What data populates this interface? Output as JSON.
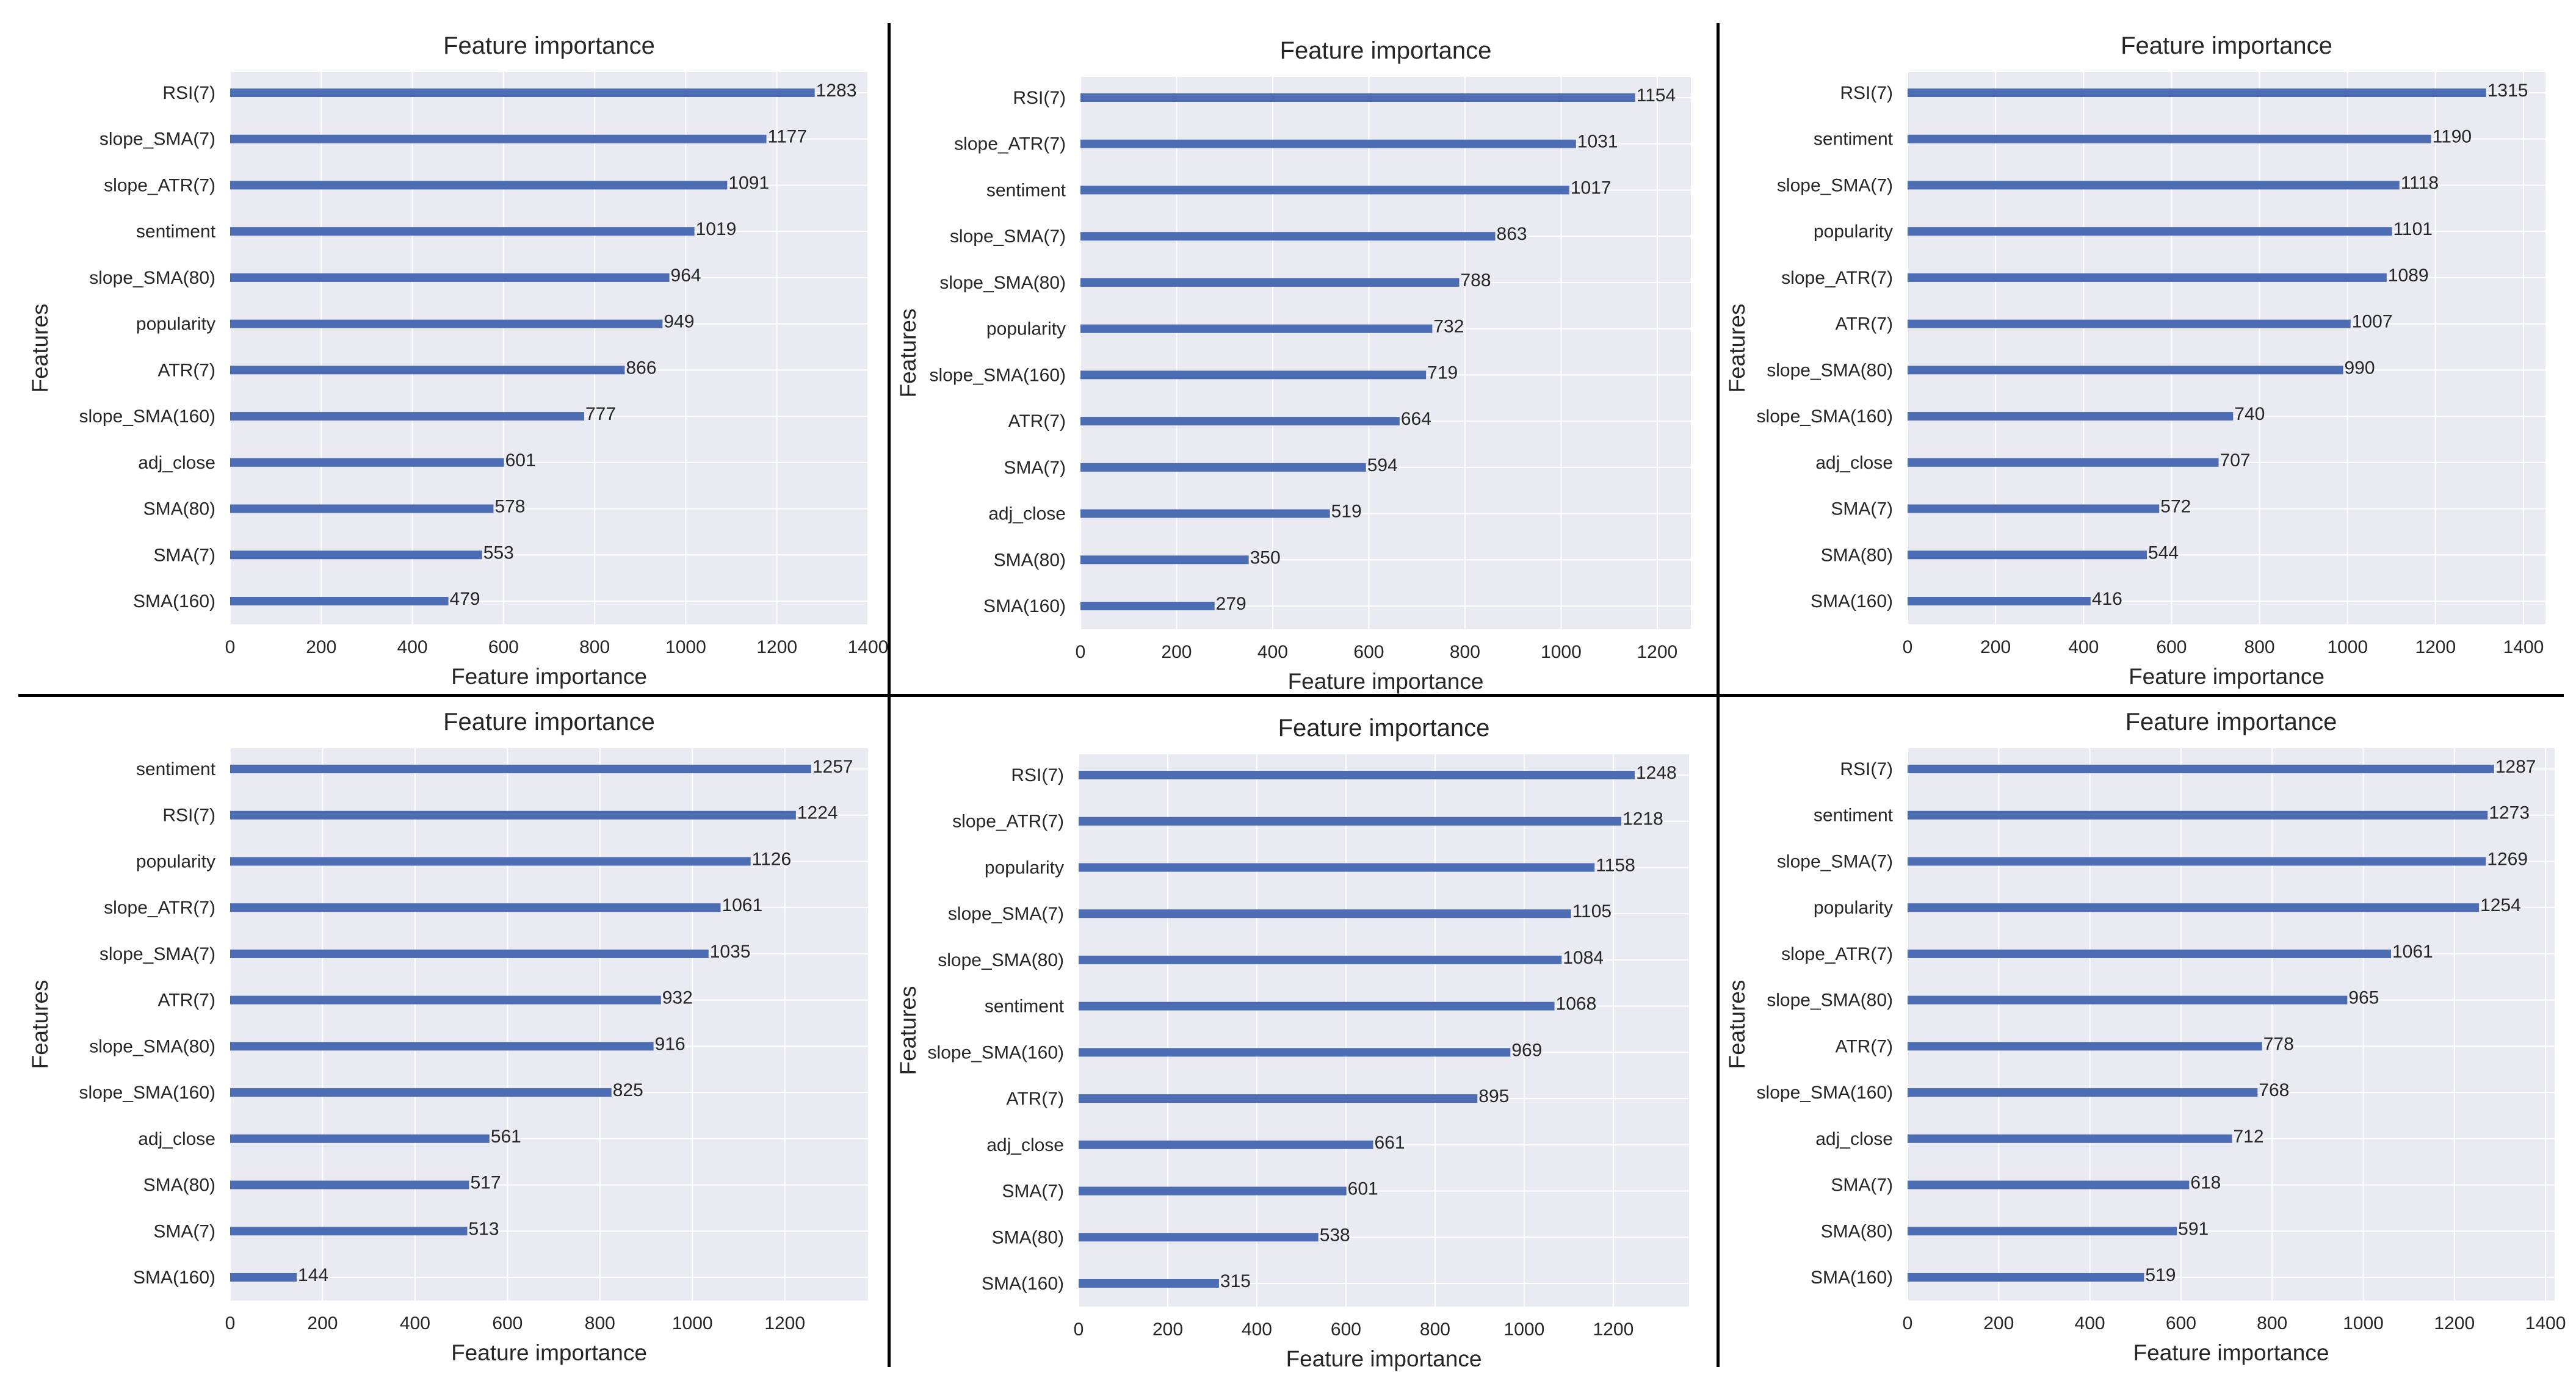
{
  "colors": {
    "bar": "#4c6db4",
    "plot_bg": "#eaeaf2",
    "grid": "#ffffff",
    "text": "#262626",
    "divider": "#000000"
  },
  "chart_data": [
    {
      "type": "bar",
      "orientation": "horizontal",
      "title": "Feature importance",
      "xlabel": "Feature importance",
      "ylabel": "Features",
      "grid": true,
      "xlim": [
        0,
        1400
      ],
      "xticks": [
        "0",
        "200",
        "400",
        "600",
        "800",
        "1000",
        "1200",
        "1400"
      ],
      "categories": [
        "RSI(7)",
        "slope_SMA(7)",
        "slope_ATR(7)",
        "sentiment",
        "slope_SMA(80)",
        "popularity",
        "ATR(7)",
        "slope_SMA(160)",
        "adj_close",
        "SMA(80)",
        "SMA(7)",
        "SMA(160)"
      ],
      "values": [
        1283,
        1177,
        1091,
        1019,
        964,
        949,
        866,
        777,
        601,
        578,
        553,
        479
      ]
    },
    {
      "type": "bar",
      "orientation": "horizontal",
      "title": "Feature importance",
      "xlabel": "Feature importance",
      "ylabel": "Features",
      "grid": true,
      "xlim": [
        0,
        1270
      ],
      "xticks": [
        "0",
        "200",
        "400",
        "600",
        "800",
        "1000",
        "1200"
      ],
      "categories": [
        "RSI(7)",
        "slope_ATR(7)",
        "sentiment",
        "slope_SMA(7)",
        "slope_SMA(80)",
        "popularity",
        "slope_SMA(160)",
        "ATR(7)",
        "SMA(7)",
        "adj_close",
        "SMA(80)",
        "SMA(160)"
      ],
      "values": [
        1154,
        1031,
        1017,
        863,
        788,
        732,
        719,
        664,
        594,
        519,
        350,
        279
      ]
    },
    {
      "type": "bar",
      "orientation": "horizontal",
      "title": "Feature importance",
      "xlabel": "Feature importance",
      "ylabel": "Features",
      "grid": true,
      "xlim": [
        0,
        1450
      ],
      "xticks": [
        "0",
        "200",
        "400",
        "600",
        "800",
        "1000",
        "1200",
        "1400"
      ],
      "categories": [
        "RSI(7)",
        "sentiment",
        "slope_SMA(7)",
        "popularity",
        "slope_ATR(7)",
        "ATR(7)",
        "slope_SMA(80)",
        "slope_SMA(160)",
        "adj_close",
        "SMA(7)",
        "SMA(80)",
        "SMA(160)"
      ],
      "values": [
        1315,
        1190,
        1118,
        1101,
        1089,
        1007,
        990,
        740,
        707,
        572,
        544,
        416
      ]
    },
    {
      "type": "bar",
      "orientation": "horizontal",
      "title": "Feature importance",
      "xlabel": "Feature importance",
      "ylabel": "Features",
      "grid": true,
      "xlim": [
        0,
        1380
      ],
      "xticks": [
        "0",
        "200",
        "400",
        "600",
        "800",
        "1000",
        "1200"
      ],
      "categories": [
        "sentiment",
        "RSI(7)",
        "popularity",
        "slope_ATR(7)",
        "slope_SMA(7)",
        "ATR(7)",
        "slope_SMA(80)",
        "slope_SMA(160)",
        "adj_close",
        "SMA(80)",
        "SMA(7)",
        "SMA(160)"
      ],
      "values": [
        1257,
        1224,
        1126,
        1061,
        1035,
        932,
        916,
        825,
        561,
        517,
        513,
        144
      ]
    },
    {
      "type": "bar",
      "orientation": "horizontal",
      "title": "Feature importance",
      "xlabel": "Feature importance",
      "ylabel": "Features",
      "grid": true,
      "xlim": [
        0,
        1370
      ],
      "xticks": [
        "0",
        "200",
        "400",
        "600",
        "800",
        "1000",
        "1200"
      ],
      "categories": [
        "RSI(7)",
        "slope_ATR(7)",
        "popularity",
        "slope_SMA(7)",
        "slope_SMA(80)",
        "sentiment",
        "slope_SMA(160)",
        "ATR(7)",
        "adj_close",
        "SMA(7)",
        "SMA(80)",
        "SMA(160)"
      ],
      "values": [
        1248,
        1218,
        1158,
        1105,
        1084,
        1068,
        969,
        895,
        661,
        601,
        538,
        315
      ]
    },
    {
      "type": "bar",
      "orientation": "horizontal",
      "title": "Feature importance",
      "xlabel": "Feature importance",
      "ylabel": "Features",
      "grid": true,
      "xlim": [
        0,
        1420
      ],
      "xticks": [
        "0",
        "200",
        "400",
        "600",
        "800",
        "1000",
        "1200",
        "1400"
      ],
      "categories": [
        "RSI(7)",
        "sentiment",
        "slope_SMA(7)",
        "popularity",
        "slope_ATR(7)",
        "slope_SMA(80)",
        "ATR(7)",
        "slope_SMA(160)",
        "adj_close",
        "SMA(7)",
        "SMA(80)",
        "SMA(160)"
      ],
      "values": [
        1287,
        1273,
        1269,
        1254,
        1061,
        965,
        778,
        768,
        712,
        618,
        591,
        519
      ]
    }
  ]
}
